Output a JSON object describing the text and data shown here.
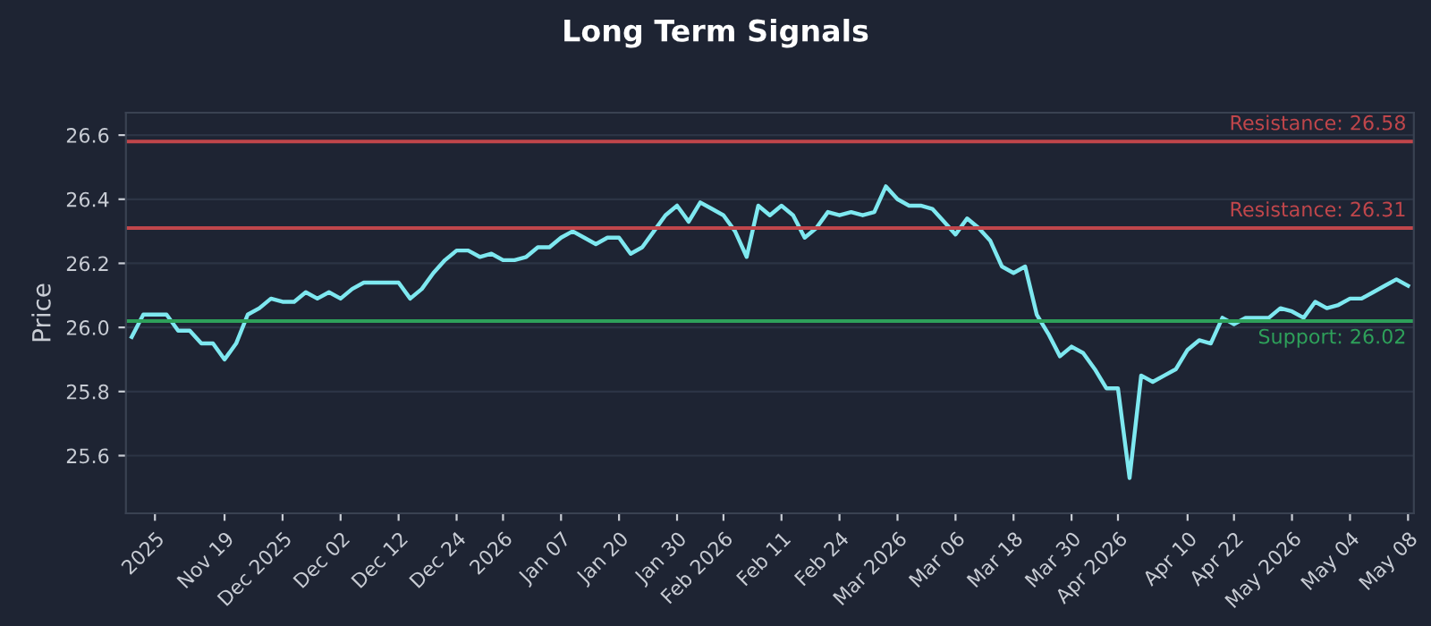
{
  "chart_data": {
    "type": "line",
    "title": "Long Term Signals",
    "ylabel": "Price",
    "categories": [
      null,
      null,
      "2025",
      null,
      null,
      null,
      null,
      null,
      "Nov 19",
      null,
      null,
      null,
      null,
      "Dec 2025",
      null,
      null,
      null,
      null,
      "Dec 02",
      null,
      null,
      null,
      null,
      "Dec 12",
      null,
      null,
      null,
      null,
      "Dec 24",
      null,
      null,
      null,
      "2026",
      null,
      null,
      null,
      null,
      "Jan 07",
      null,
      null,
      null,
      null,
      "Jan 20",
      null,
      null,
      null,
      null,
      "Jan 30",
      null,
      null,
      null,
      "Feb 2026",
      null,
      null,
      null,
      null,
      "Feb 11",
      null,
      null,
      null,
      null,
      "Feb 24",
      null,
      null,
      null,
      null,
      "Mar 2026",
      null,
      null,
      null,
      null,
      "Mar 06",
      null,
      null,
      null,
      null,
      "Mar 18",
      null,
      null,
      null,
      null,
      "Mar 30",
      null,
      null,
      null,
      "Apr 2026",
      null,
      null,
      null,
      null,
      null,
      "Apr 10",
      null,
      null,
      null,
      "Apr 22",
      null,
      null,
      null,
      null,
      "May 2026",
      null,
      null,
      null,
      null,
      "May 04",
      null,
      null,
      null,
      null,
      "May 08"
    ],
    "series": [
      {
        "color": "#7ee8f0",
        "values": [
          25.97,
          26.04,
          26.04,
          26.04,
          25.99,
          25.99,
          25.95,
          25.95,
          25.9,
          25.95,
          26.04,
          26.06,
          26.09,
          26.08,
          26.08,
          26.11,
          26.09,
          26.11,
          26.09,
          26.12,
          26.14,
          26.14,
          26.14,
          26.14,
          26.09,
          26.12,
          26.17,
          26.21,
          26.24,
          26.24,
          26.22,
          26.23,
          26.21,
          26.21,
          26.22,
          26.25,
          26.25,
          26.28,
          26.3,
          26.28,
          26.26,
          26.28,
          26.28,
          26.23,
          26.25,
          26.3,
          26.35,
          26.38,
          26.33,
          26.39,
          26.37,
          26.35,
          26.3,
          26.22,
          26.38,
          26.35,
          26.38,
          26.35,
          26.28,
          26.31,
          26.36,
          26.35,
          26.36,
          26.35,
          26.36,
          26.44,
          26.4,
          26.38,
          26.38,
          26.37,
          26.33,
          26.29,
          26.34,
          26.31,
          26.27,
          26.19,
          26.17,
          26.19,
          26.04,
          25.98,
          25.91,
          25.94,
          25.92,
          25.87,
          25.81,
          25.81,
          25.53,
          25.85,
          25.83,
          25.85,
          25.87,
          25.93,
          25.96,
          25.95,
          26.03,
          26.01,
          26.03,
          26.03,
          26.03,
          26.06,
          26.05,
          26.03,
          26.08,
          26.06,
          26.07,
          26.09,
          26.09,
          26.11,
          26.13,
          26.15,
          26.13
        ]
      }
    ],
    "ylim": [
      25.42,
      26.67
    ],
    "yticks": [
      25.6,
      25.8,
      {
        "value": 26,
        "label": "26.0"
      },
      26.2,
      26.4,
      26.6
    ],
    "grid": "y",
    "ref_lines": [
      {
        "axis": "y",
        "value": 26.58,
        "label": "Resistance: 26.58",
        "color": "#c0464b"
      },
      {
        "axis": "y",
        "value": 26.31,
        "label": "Resistance: 26.31",
        "color": "#c0464b"
      },
      {
        "axis": "y",
        "value": 26.02,
        "label": "Support: 26.02",
        "color": "#2ea05a"
      }
    ]
  }
}
